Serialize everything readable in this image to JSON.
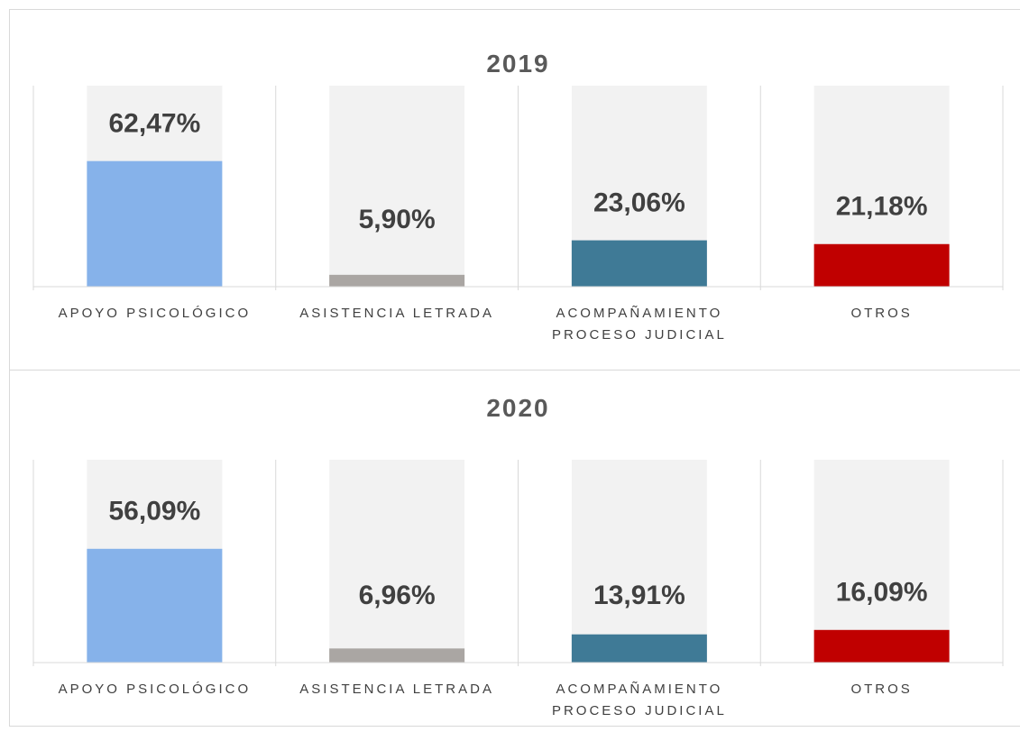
{
  "chart_data": [
    {
      "type": "bar",
      "title": "2019",
      "categories": [
        "APOYO PSICOLÓGICO",
        "ASISTENCIA LETRADA",
        "ACOMPAÑAMIENTO PROCESO JUDICIAL",
        "OTROS"
      ],
      "values": [
        62.47,
        5.9,
        23.06,
        21.18
      ],
      "value_labels": [
        "62,47%",
        "5,90%",
        "23,06%",
        "21,18%"
      ],
      "colors": [
        "#86b2ea",
        "#aaa6a3",
        "#3f7a96",
        "#c00000"
      ],
      "ylim": [
        0,
        100
      ]
    },
    {
      "type": "bar",
      "title": "2020",
      "categories": [
        "APOYO PSICOLÓGICO",
        "ASISTENCIA LETRADA",
        "ACOMPAÑAMIENTO PROCESO JUDICIAL",
        "OTROS"
      ],
      "values": [
        56.09,
        6.96,
        13.91,
        16.09
      ],
      "value_labels": [
        "56,09%",
        "6,96%",
        "13,91%",
        "16,09%"
      ],
      "colors": [
        "#86b2ea",
        "#aaa6a3",
        "#3f7a96",
        "#c00000"
      ],
      "ylim": [
        0,
        100
      ]
    }
  ]
}
